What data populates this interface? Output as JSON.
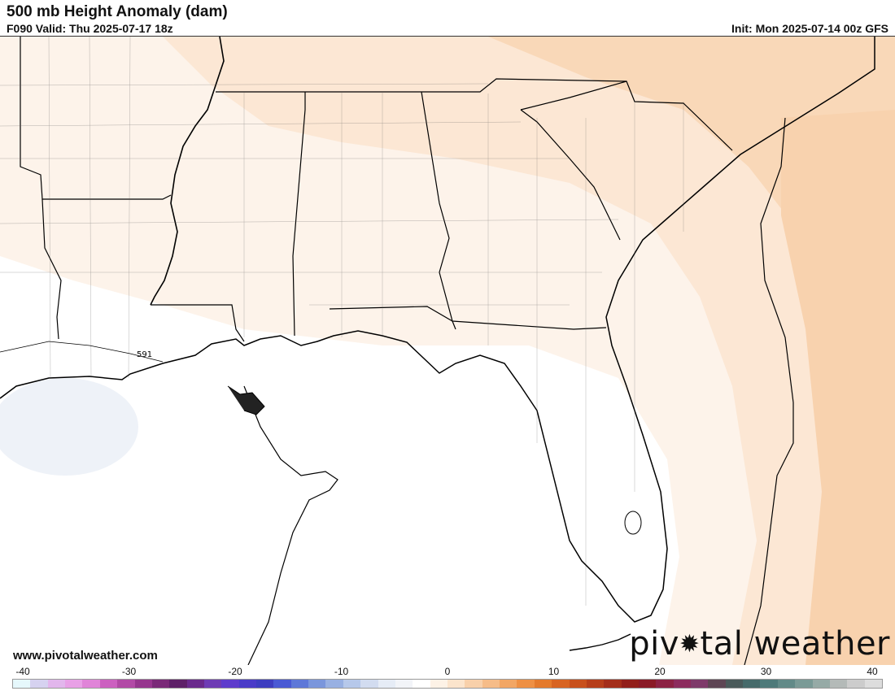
{
  "header": {
    "title": "500 mb Height Anomaly (dam)",
    "valid": "F090 Valid: Thu 2025-07-17 18z",
    "init": "Init: Mon 2025-07-14 00z GFS"
  },
  "map": {
    "contour_label": "591",
    "site": "www.pivotalweather.com",
    "logo_left": "piv",
    "logo_right": "tal weather"
  },
  "colorbar": {
    "ticks": [
      "-40",
      "-30",
      "-20",
      "-10",
      "0",
      "10",
      "20",
      "30",
      "40"
    ],
    "colors": [
      "#e6f8fc",
      "#d6d2f0",
      "#e2b6ec",
      "#e8a0e6",
      "#e084d8",
      "#cc60c0",
      "#b24aa6",
      "#96368e",
      "#7a2a78",
      "#5e2068",
      "#6a2a8c",
      "#6e3cb4",
      "#5e3ccc",
      "#4a3cc8",
      "#3e3ec0",
      "#4a5ad4",
      "#5e78d8",
      "#7a96dc",
      "#98b0e2",
      "#b6c8ea",
      "#d2dcf0",
      "#e6ecf6",
      "#f2f4f8",
      "#ffffff",
      "#fdf2e6",
      "#fbe4cc",
      "#f8d0aa",
      "#f6bc88",
      "#f2a664",
      "#ee9044",
      "#e47a2c",
      "#d86422",
      "#c8501c",
      "#b63e1a",
      "#a42e1a",
      "#921f1a",
      "#8a1a26",
      "#8c2244",
      "#8c2c5e",
      "#7e3a6a",
      "#5e4654",
      "#4a5a5a",
      "#466a6a",
      "#4e7a7a",
      "#628a88",
      "#7a9a96",
      "#96aaa6",
      "#b4bab8",
      "#cccccc",
      "#dddddd"
    ]
  }
}
